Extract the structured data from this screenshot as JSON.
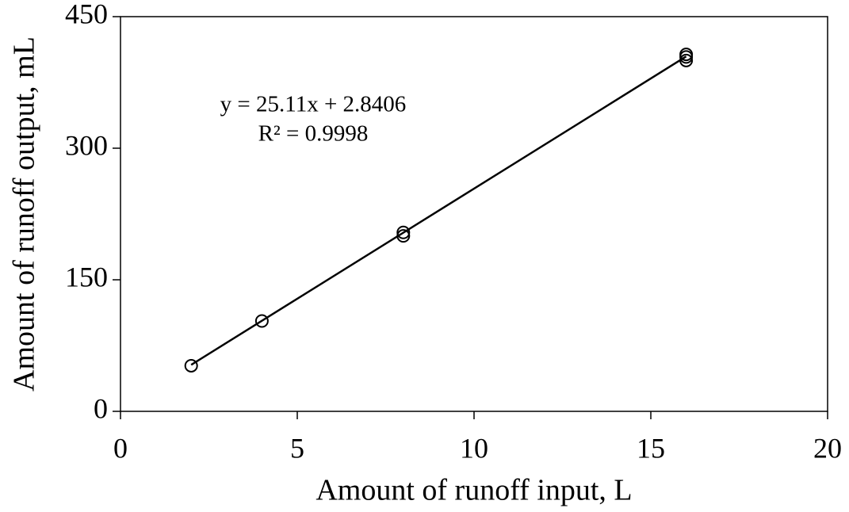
{
  "chart_data": {
    "type": "scatter",
    "x_label": "Amount of runoff input, L",
    "y_label": "Amount of runoff output, mL",
    "series": [
      {
        "color": "#000000",
        "marker": "open-circle",
        "x": [
          2,
          4,
          8,
          8,
          16,
          16,
          16
        ],
        "values": [
          52,
          103,
          204,
          200,
          407,
          404,
          400
        ]
      }
    ],
    "trendline": {
      "type": "linear",
      "slope": 25.11,
      "intercept": 2.8406,
      "color": "#000000"
    },
    "annotations": [
      "y = 25.11x + 2.8406",
      "R² = 0.9998"
    ],
    "xlim": [
      0,
      20
    ],
    "xticks": [
      0,
      5,
      10,
      15,
      20
    ],
    "ylim": [
      0,
      450
    ],
    "yticks": [
      0,
      150,
      300,
      450
    ],
    "grid": false
  }
}
